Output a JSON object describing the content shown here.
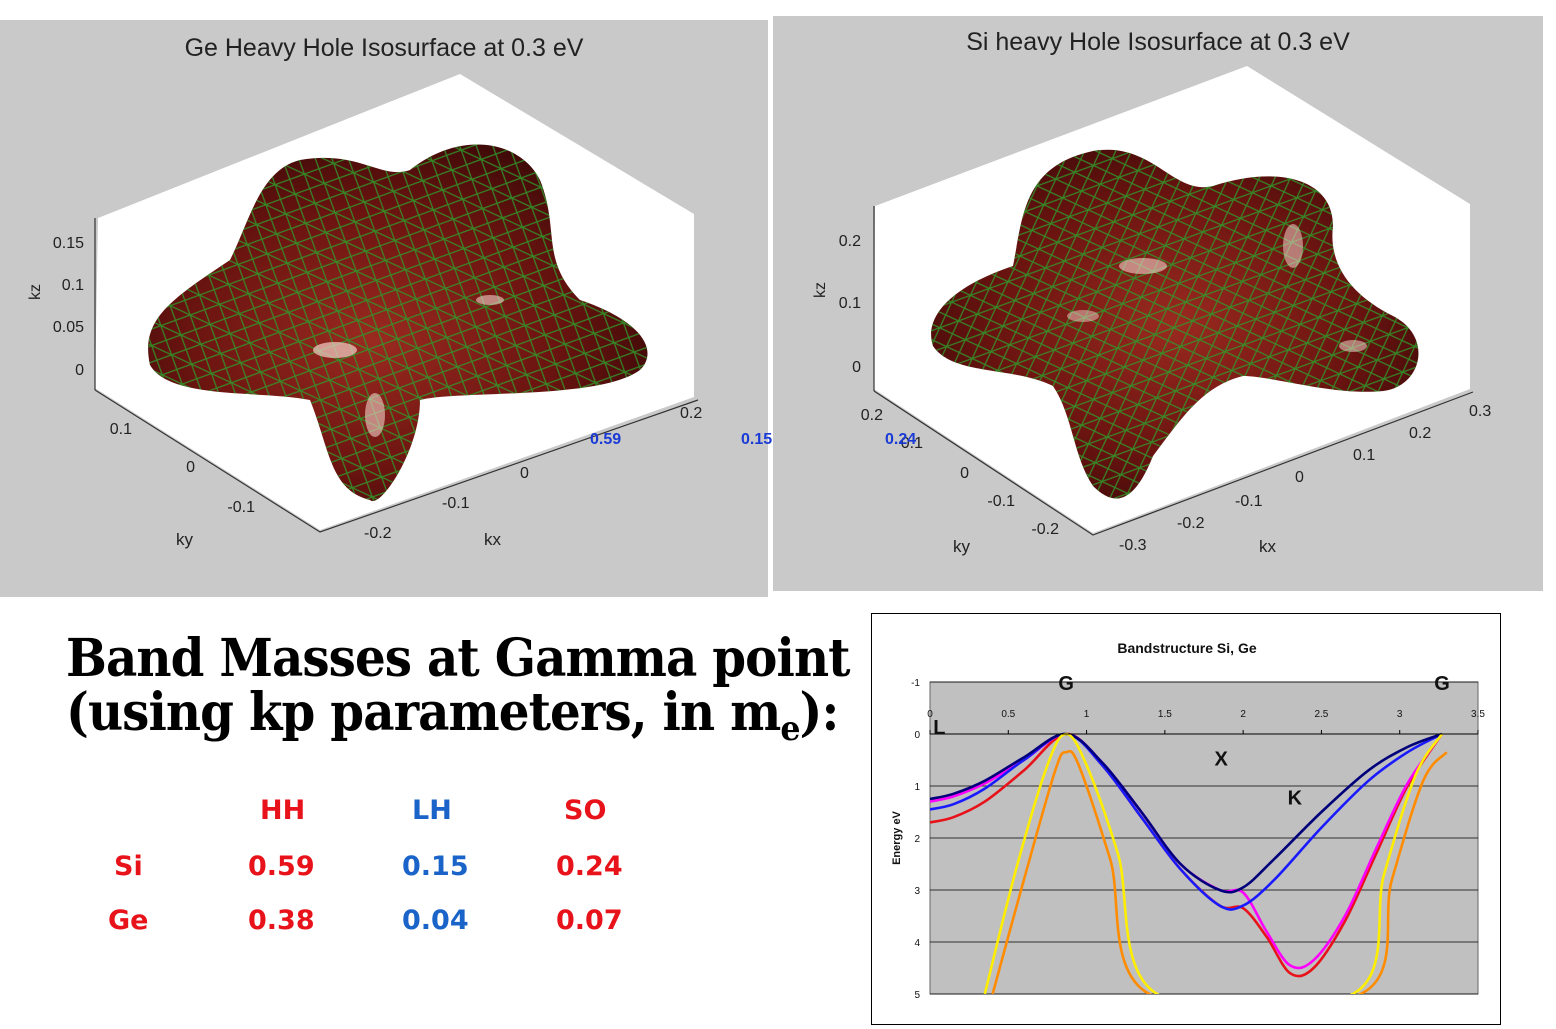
{
  "isosurfaces": [
    {
      "title": "Ge Heavy Hole Isosurface at 0.3 eV",
      "z_axis": {
        "label": "kz",
        "ticks": [
          "0.15",
          "0.1",
          "0.05",
          "0"
        ]
      },
      "y_axis": {
        "label": "ky",
        "ticks": [
          "0.1",
          "0",
          "-0.1"
        ]
      },
      "x_axis": {
        "label": "kx",
        "ticks": [
          "0.2",
          "0",
          "-0.1",
          "-0.2"
        ]
      }
    },
    {
      "title": "Si heavy Hole Isosurface at 0.3 eV",
      "z_axis": {
        "label": "kz",
        "ticks": [
          "0.2",
          "0.1",
          "0"
        ]
      },
      "y_axis": {
        "label": "ky",
        "ticks": [
          "0.2",
          "0.1",
          "0",
          "-0.1",
          "-0.2"
        ]
      },
      "x_axis": {
        "label": "kx",
        "ticks": [
          "0.3",
          "0.2",
          "0.1",
          "0",
          "-0.1",
          "-0.2",
          "-0.3"
        ]
      }
    }
  ],
  "overlay_values": [
    "0.59",
    "0.15",
    "0.24"
  ],
  "heading": {
    "line1": "Band Masses at Gamma point",
    "line2": "(using kp parameters, in m",
    "sub": "e",
    "suffix": "):"
  },
  "mass_table": {
    "columns": [
      "HH",
      "LH",
      "SO"
    ],
    "rows": [
      {
        "label": "Si",
        "values": [
          "0.59",
          "0.15",
          "0.24"
        ]
      },
      {
        "label": "Ge",
        "values": [
          "0.38",
          "0.04",
          "0.07"
        ]
      }
    ]
  },
  "colors": {
    "red": "#e8121a",
    "blue": "#1a63c8",
    "surface": "#6b1410",
    "mesh": "#1f8a1f",
    "plot_bg": "#c0c0c0"
  },
  "chart_data": {
    "type": "line",
    "title": "Bandstructure Si, Ge",
    "xlabel": "",
    "ylabel": "Energy eV",
    "xlim": [
      0,
      3.5
    ],
    "ylim": [
      -1,
      5
    ],
    "y_inverted": true,
    "x_ticks": [
      "0",
      "0.5",
      "1",
      "1.5",
      "2",
      "2.5",
      "3",
      "3.5"
    ],
    "y_ticks": [
      "-1",
      "0",
      "1",
      "2",
      "3",
      "4",
      "5"
    ],
    "grid": true,
    "annotations": [
      {
        "text": "G",
        "x": 0.87,
        "y": -1
      },
      {
        "text": "G",
        "x": 3.27,
        "y": -1
      },
      {
        "text": "L",
        "x": 0.06,
        "y": -0.15
      },
      {
        "text": "X",
        "x": 1.86,
        "y": 0.45
      },
      {
        "text": "K",
        "x": 2.33,
        "y": 1.2
      }
    ],
    "series": [
      {
        "color": "#e8121a",
        "x": [
          0,
          0.15,
          0.35,
          0.6,
          0.87,
          1.1,
          1.35,
          1.6,
          1.85,
          2.0,
          2.15,
          2.3,
          2.45,
          2.65,
          2.85,
          3.05,
          3.27
        ],
        "y": [
          1.7,
          1.6,
          1.3,
          0.7,
          0,
          0.6,
          1.6,
          2.6,
          3.3,
          3.35,
          3.9,
          4.6,
          4.5,
          3.6,
          2.3,
          1.0,
          0
        ]
      },
      {
        "color": "#ff00ff",
        "x": [
          0,
          0.15,
          0.35,
          0.6,
          0.87,
          1.1,
          1.35,
          1.6,
          1.85,
          2.0,
          2.15,
          2.3,
          2.45,
          2.65,
          2.85,
          3.05,
          3.27
        ],
        "y": [
          1.3,
          1.2,
          0.95,
          0.5,
          0,
          0.55,
          1.5,
          2.5,
          3.0,
          3.05,
          3.8,
          4.45,
          4.35,
          3.5,
          2.2,
          0.95,
          0
        ]
      },
      {
        "color": "#1a1aff",
        "x": [
          0,
          0.15,
          0.35,
          0.6,
          0.87,
          1.1,
          1.35,
          1.6,
          1.85,
          2.0,
          2.2,
          2.5,
          2.8,
          3.05,
          3.27
        ],
        "y": [
          1.45,
          1.35,
          1.05,
          0.5,
          0,
          0.6,
          1.6,
          2.6,
          3.3,
          3.3,
          2.8,
          1.8,
          0.9,
          0.35,
          0
        ]
      },
      {
        "color": "#00007a",
        "x": [
          0,
          0.15,
          0.35,
          0.6,
          0.87,
          1.1,
          1.35,
          1.6,
          1.85,
          2.0,
          2.2,
          2.5,
          2.8,
          3.05,
          3.27
        ],
        "y": [
          1.25,
          1.15,
          0.9,
          0.45,
          0,
          0.55,
          1.5,
          2.5,
          3.0,
          2.95,
          2.4,
          1.5,
          0.7,
          0.25,
          0
        ]
      },
      {
        "color": "#ffee00",
        "x": [
          0.35,
          0.55,
          0.75,
          0.87,
          1.0,
          1.2,
          1.45,
          2.7,
          2.9,
          3.1,
          3.27
        ],
        "y": [
          5.0,
          2.6,
          0.6,
          0,
          0.6,
          2.3,
          5.0,
          5.0,
          2.7,
          0.8,
          0
        ]
      },
      {
        "color": "#ff8c00",
        "x": [
          0.4,
          0.6,
          0.8,
          0.87,
          0.95,
          1.15,
          1.4,
          2.75,
          2.95,
          3.15,
          3.3
        ],
        "y": [
          5.0,
          2.8,
          0.7,
          0.35,
          0.6,
          2.4,
          5.0,
          5.0,
          2.8,
          0.9,
          0.35
        ]
      }
    ]
  }
}
